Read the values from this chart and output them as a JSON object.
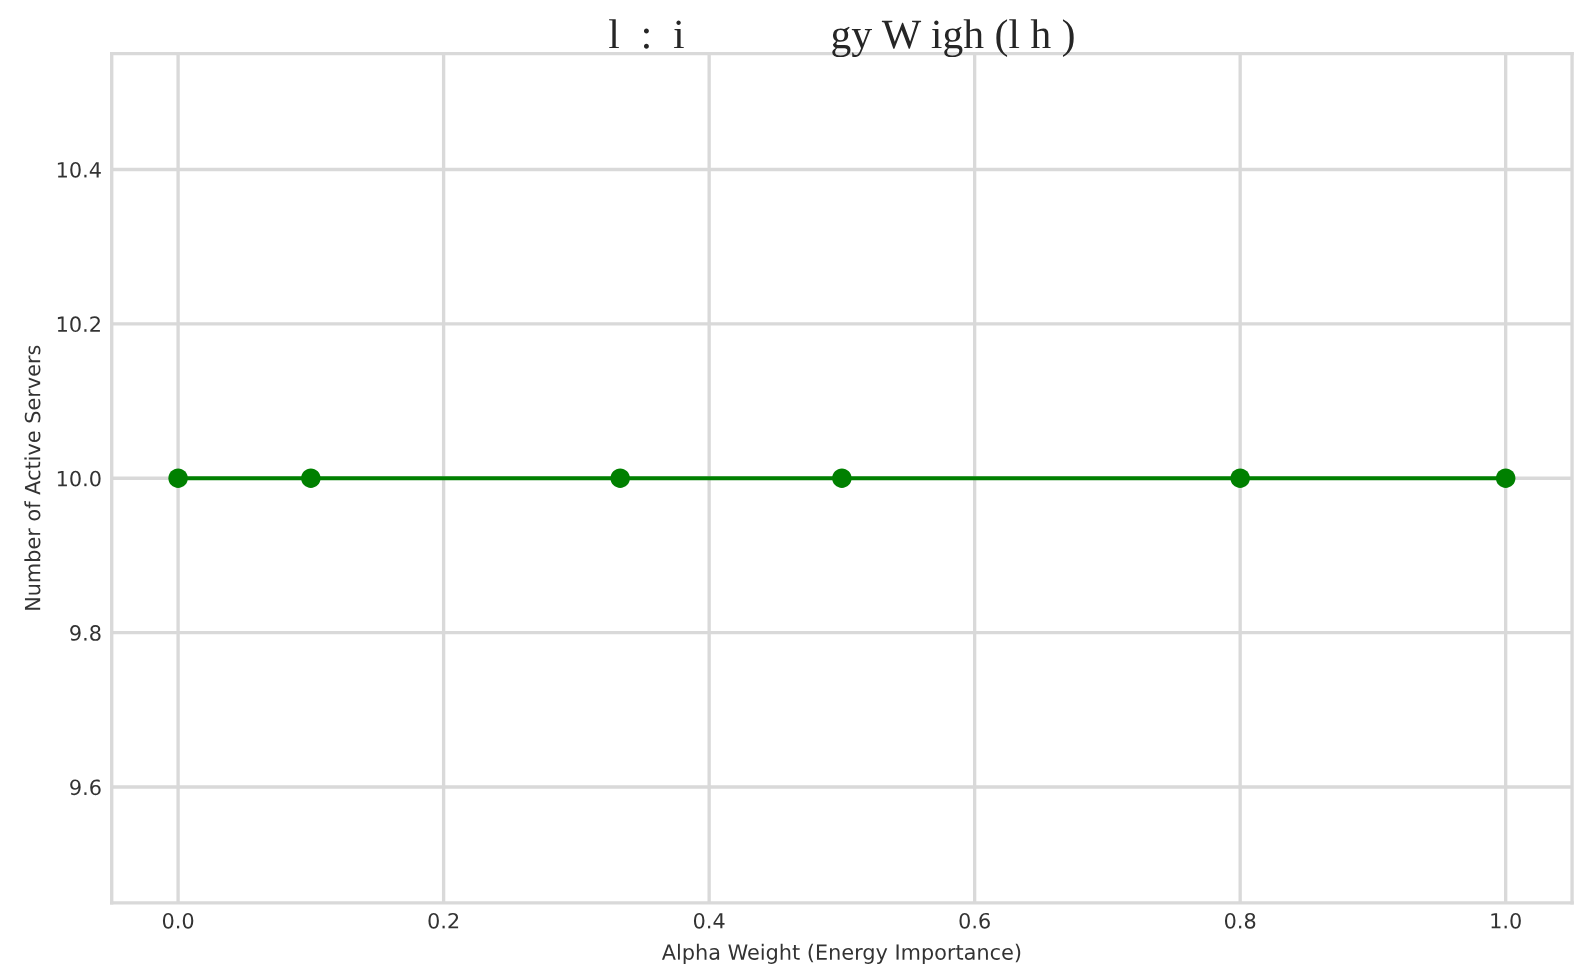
{
  "chart_data": {
    "type": "line",
    "title": "l  :  i              gy W igh (l h )",
    "xlabel": "Alpha Weight (Energy Importance)",
    "ylabel": "Number of Active Servers",
    "series": [
      {
        "color": "#008000",
        "x": [
          0.0,
          0.1,
          0.333,
          0.5,
          0.8,
          1.0
        ],
        "values": [
          10.0,
          10.0,
          10.0,
          10.0,
          10.0,
          10.0
        ]
      }
    ],
    "xlim": [
      -0.05,
      1.05
    ],
    "xticks": [
      {
        "value": 0,
        "label": "0.0"
      },
      0.2,
      0.4,
      0.6,
      0.8,
      {
        "value": 1,
        "label": "1.0"
      }
    ],
    "ylim": [
      9.45,
      10.55
    ],
    "yticks": [
      9.6,
      9.8,
      {
        "value": 10,
        "label": "10.0"
      },
      10.2,
      10.4
    ],
    "grid": true,
    "marker": "circle",
    "line_style": "solid"
  }
}
